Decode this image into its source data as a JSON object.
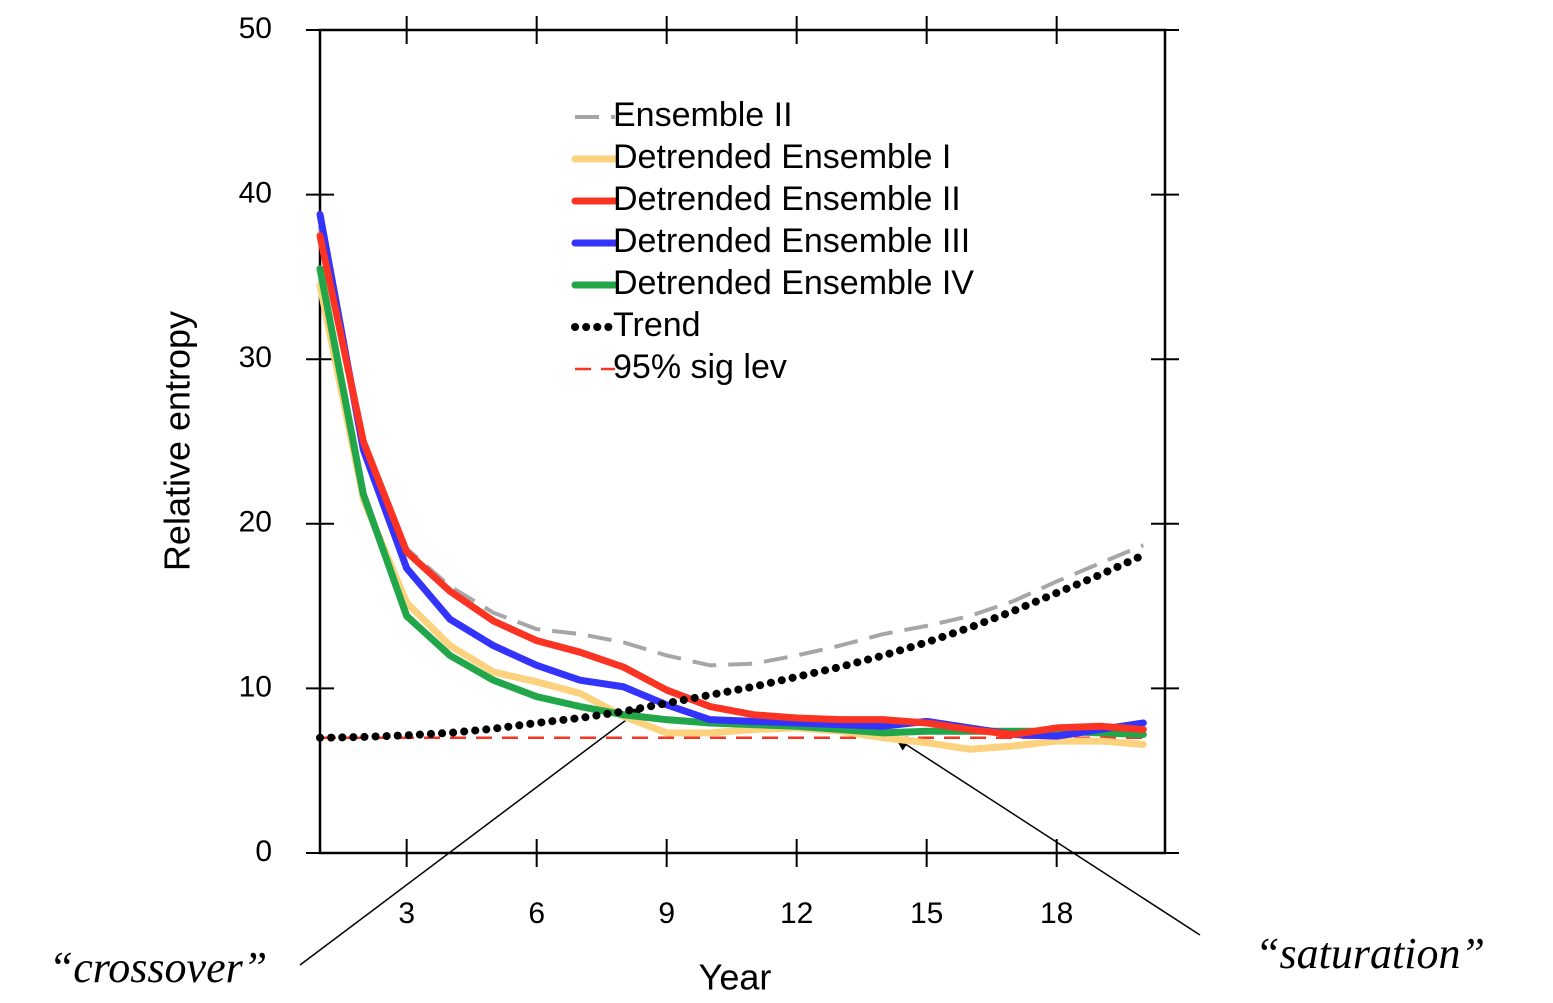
{
  "chart_data": {
    "type": "line",
    "xlabel": "Year",
    "ylabel": "Relative entropy",
    "x": [
      1,
      2,
      3,
      4,
      5,
      6,
      7,
      8,
      9,
      10,
      11,
      12,
      13,
      14,
      15,
      16,
      17,
      18,
      19,
      20
    ],
    "xlim": [
      1,
      20.5
    ],
    "xticks": [
      3,
      6,
      9,
      12,
      15,
      18
    ],
    "ylim": [
      0,
      50
    ],
    "yticks": [
      0,
      10,
      20,
      30,
      40,
      50
    ],
    "series": [
      {
        "name": "Ensemble II",
        "color": "#a6a6a6",
        "linestyle": "dashed",
        "values": [
          38,
          25,
          18.5,
          16.2,
          14.6,
          13.6,
          13.3,
          12.8,
          12.0,
          11.4,
          11.5,
          12.0,
          12.6,
          13.3,
          13.8,
          14.4,
          15.3,
          16.5,
          17.6,
          18.7
        ]
      },
      {
        "name": "Detrended Ensemble I",
        "color": "#fdd27e",
        "linestyle": "solid",
        "values": [
          34.5,
          21.5,
          15.2,
          12.6,
          11.0,
          10.4,
          9.7,
          8.3,
          7.3,
          7.3,
          7.5,
          7.6,
          7.4,
          7.0,
          6.7,
          6.3,
          6.5,
          6.8,
          6.8,
          6.6
        ]
      },
      {
        "name": "Detrended Ensemble II",
        "color": "#fb3323",
        "linestyle": "solid",
        "values": [
          37.5,
          25,
          18.3,
          15.9,
          14.1,
          12.9,
          12.2,
          11.3,
          9.9,
          8.9,
          8.4,
          8.2,
          8.1,
          8.1,
          7.9,
          7.5,
          7.2,
          7.6,
          7.7,
          7.5
        ]
      },
      {
        "name": "Detrended Ensemble III",
        "color": "#3333fb",
        "linestyle": "solid",
        "values": [
          38.8,
          24.5,
          17.3,
          14.2,
          12.6,
          11.4,
          10.5,
          10.1,
          9.0,
          8.1,
          8.0,
          7.9,
          7.8,
          7.7,
          8.0,
          7.6,
          7.2,
          7.1,
          7.5,
          7.9
        ]
      },
      {
        "name": "Detrended Ensemble IV",
        "color": "#22a64a",
        "linestyle": "solid",
        "values": [
          35.5,
          21.8,
          14.4,
          12.0,
          10.5,
          9.5,
          8.9,
          8.4,
          8.1,
          7.9,
          7.8,
          7.7,
          7.5,
          7.3,
          7.4,
          7.4,
          7.4,
          7.4,
          7.3,
          7.2
        ]
      },
      {
        "name": "Trend",
        "color": "#000000",
        "linestyle": "dotted",
        "values": [
          7.0,
          7.05,
          7.15,
          7.3,
          7.55,
          7.9,
          8.2,
          8.6,
          9.1,
          9.6,
          10.1,
          10.7,
          11.3,
          12.0,
          12.8,
          13.7,
          14.7,
          15.8,
          16.9,
          18.1
        ]
      },
      {
        "name": "95% sig lev",
        "color": "#fb3323",
        "linestyle": "thin-dashed",
        "values": [
          7,
          7,
          7,
          7,
          7,
          7,
          7,
          7,
          7,
          7,
          7,
          7,
          7,
          7,
          7,
          7,
          7,
          7,
          7,
          7
        ]
      }
    ],
    "annotations": [
      "“crossover”",
      "“saturation”"
    ]
  }
}
